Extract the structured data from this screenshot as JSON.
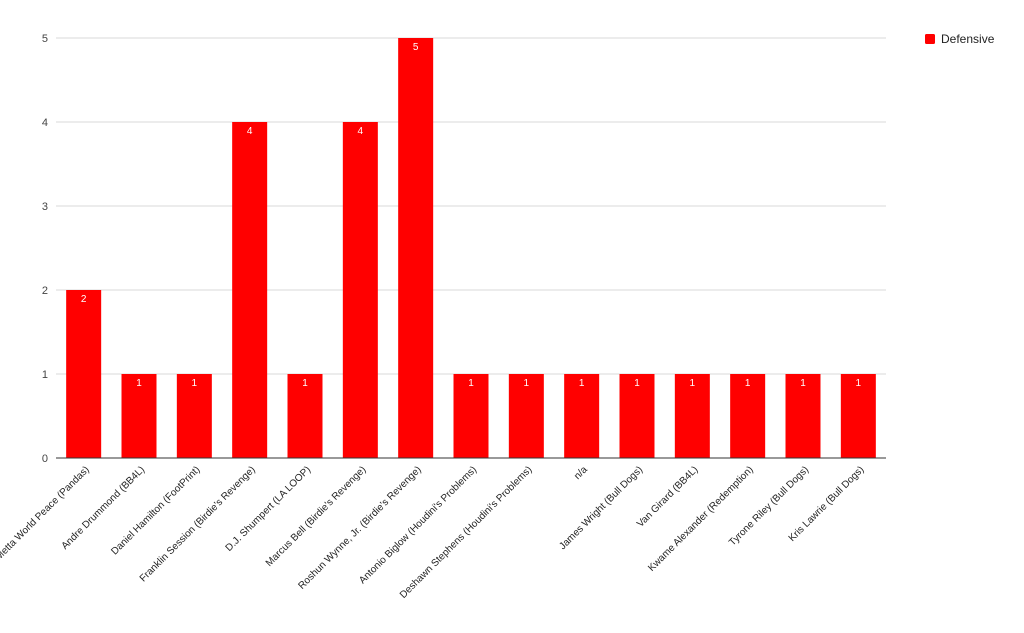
{
  "chart_data": {
    "type": "bar",
    "title": "",
    "xlabel": "",
    "ylabel": "",
    "ylim": [
      0,
      5
    ],
    "yticks": [
      0,
      1,
      2,
      3,
      4,
      5
    ],
    "grid": true,
    "legend_position": "top-right",
    "categories": [
      "Metta World Peace (Pandas)",
      "Andre Drummond (BB4L)",
      "Daniel Hamilton (FootPrint)",
      "Franklin Session (Birdie's Revenge)",
      "D.J. Shumpert (LA LOOP)",
      "Marcus Bell (Birdie's Revenge)",
      "Roshun Wynne, Jr. (Birdie's Revenge)",
      "Antonio Biglow (Houdini's Problems)",
      "Deshawn Stephens (Houdini's Problems)",
      "n/a",
      "James Wright (Bull Dogs)",
      "Van Girard (BB4L)",
      "Kwame Alexander (Redemption)",
      "Tyrone Riley (Bull Dogs)",
      "Kris Lawrie (Bull Dogs)"
    ],
    "series": [
      {
        "name": "Defensive",
        "color": "#ff0000",
        "values": [
          2,
          1,
          1,
          4,
          1,
          4,
          5,
          1,
          1,
          1,
          1,
          1,
          1,
          1,
          1
        ]
      }
    ]
  }
}
